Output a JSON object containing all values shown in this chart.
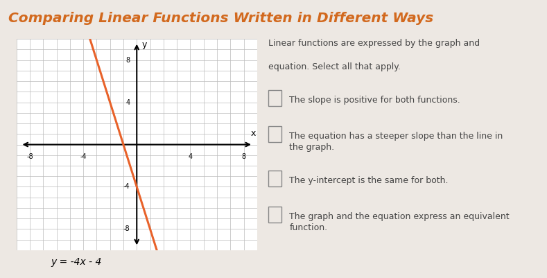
{
  "title": "Comparing Linear Functions Written in Different Ways",
  "title_color": "#D2691E",
  "title_bg": "#d4c5b5",
  "content_bg": "#ede8e3",
  "right_bg": "#ede8e3",
  "graph_bg": "white",
  "graph_grid_color": "#bbbbbb",
  "line_color": "#E8622A",
  "line_slope": -4,
  "line_intercept": -4,
  "axis_ticks": [
    -8,
    -4,
    4,
    8
  ],
  "equation": "y = -4x - 4",
  "instructions_line1": "Linear functions are expressed by the graph and",
  "instructions_line2": "equation. Select all that apply.",
  "checkboxes": [
    "The slope is positive for both functions.",
    "The equation has a steeper slope than the line in\nthe graph.",
    "The y-intercept is the same for both.",
    "The graph and the equation express an equivalent\nfunction."
  ],
  "checkbox_color": "#888888",
  "text_color": "#444444",
  "text_fontsize": 9.0,
  "title_fontsize": 14.5
}
